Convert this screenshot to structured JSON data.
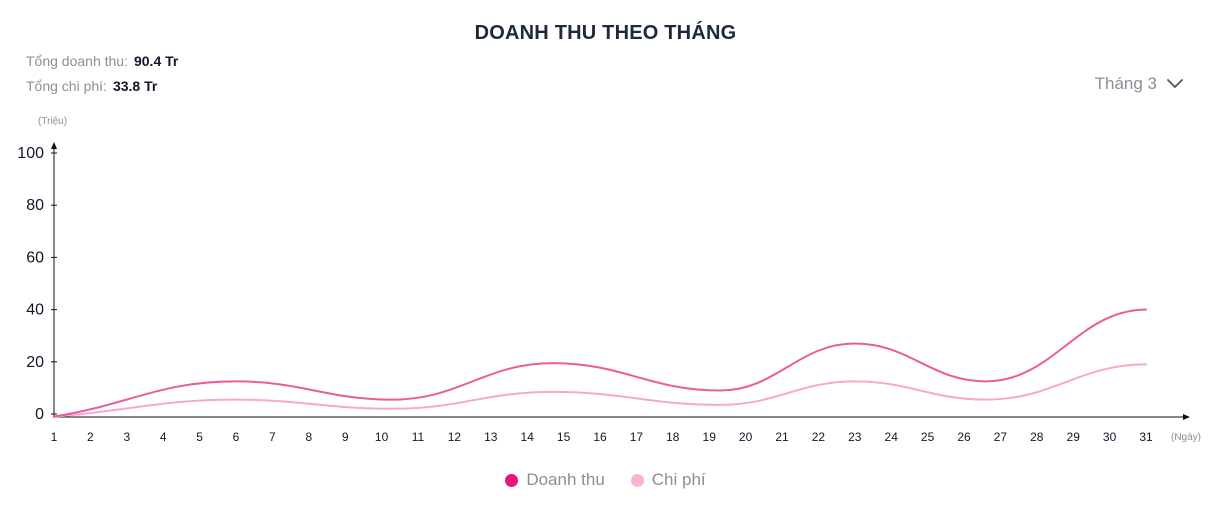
{
  "header": {
    "title": "DOANH THU THEO THÁNG",
    "revenue_label": "Tổng doanh thu:",
    "revenue_value": "90.4 Tr",
    "cost_label": "Tổng chi phí:",
    "cost_value": "33.8 Tr"
  },
  "month_select": {
    "value": "Tháng 3",
    "icon": "chevron-down-icon"
  },
  "colors": {
    "revenue": "#ec5b9b",
    "cost": "#f7a8cf",
    "axis": "#111111",
    "text": "#1f2937"
  },
  "chart_data": {
    "type": "line",
    "smooth": true,
    "xlabel": "(Ngày)",
    "ylabel": "(Triệu)",
    "ylim": [
      0,
      100
    ],
    "yticks": [
      0,
      20,
      40,
      60,
      80,
      100
    ],
    "x": [
      1,
      2,
      3,
      4,
      5,
      6,
      7,
      8,
      9,
      10,
      11,
      12,
      13,
      14,
      15,
      16,
      17,
      18,
      19,
      20,
      21,
      22,
      23,
      24,
      25,
      26,
      27,
      28,
      29,
      30,
      31
    ],
    "series": [
      {
        "name": "Doanh thu",
        "x": [
          1,
          6,
          10.3,
          14.7,
          19.3,
          23,
          26.6,
          31
        ],
        "values": [
          -1,
          12.5,
          5.5,
          19.5,
          9,
          27,
          12.5,
          40
        ]
      },
      {
        "name": "Chi phí",
        "x": [
          1,
          6,
          10.3,
          14.7,
          19.3,
          23,
          26.6,
          31
        ],
        "values": [
          -1,
          5.5,
          2,
          8.5,
          3.5,
          12.5,
          5.5,
          19
        ]
      }
    ],
    "grid": false,
    "legend_position": "bottom-center"
  }
}
